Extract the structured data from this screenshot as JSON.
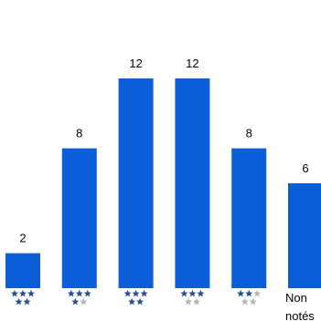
{
  "chart_data": {
    "type": "bar",
    "categories": [
      "★★★★★",
      "★★★★☆",
      "★★★★★",
      "★★★☆☆",
      "★★☆☆☆",
      "Non notés"
    ],
    "stars": [
      5,
      4,
      5,
      3,
      2,
      null
    ],
    "values": [
      2,
      8,
      12,
      12,
      8,
      6
    ],
    "data_labels": [
      "2",
      "8",
      "12",
      "12",
      "8",
      "6"
    ],
    "last_label_lines": [
      "Non",
      "notés"
    ],
    "ylim": [
      0,
      12
    ],
    "grid": false,
    "legend": "none",
    "colors": {
      "bar": "#0b5ed7",
      "star_filled": "#2f4f8a",
      "star_empty": "#b5b5b5",
      "text": "#000000"
    }
  }
}
